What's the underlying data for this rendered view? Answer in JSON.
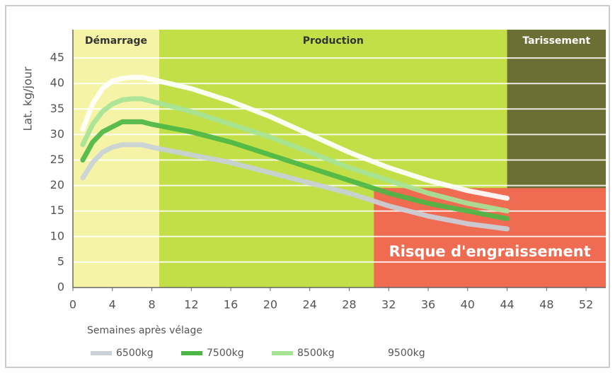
{
  "chart_data": {
    "type": "line",
    "ylabel": "Lat. kg/jour",
    "xlabel": "Semaines après vélage",
    "xlim": [
      0,
      54
    ],
    "ylim": [
      0,
      50
    ],
    "xticks": [
      0,
      4,
      8,
      12,
      16,
      20,
      24,
      28,
      32,
      36,
      40,
      44,
      48,
      52
    ],
    "yticks": [
      0,
      5,
      10,
      15,
      20,
      25,
      30,
      35,
      40,
      45
    ],
    "grid": true,
    "phases": [
      {
        "label": "Démarrage",
        "start": 0,
        "end": 8.75,
        "color": "#f5f4a6"
      },
      {
        "label": "Production",
        "start": 8.75,
        "end": 44,
        "color": "#c3df48"
      },
      {
        "label": "Tarissement",
        "start": 44,
        "end": 54,
        "color": "#6c6f34"
      }
    ],
    "zone": {
      "label": "Risque d'engraissement",
      "xlim": [
        30.5,
        54
      ],
      "ylim": [
        0,
        19.5
      ],
      "color": "#ef6b52"
    },
    "x": [
      1,
      2,
      3,
      4,
      5,
      6,
      7,
      8,
      12,
      16,
      20,
      24,
      28,
      32,
      36,
      40,
      44
    ],
    "series": [
      {
        "name": "6500kg",
        "color": "#c9d0d8",
        "values": [
          21.5,
          24.5,
          26.5,
          27.5,
          28,
          28,
          28,
          27.5,
          26,
          24.5,
          22.5,
          20.5,
          18.5,
          16,
          14,
          12.5,
          11.5
        ]
      },
      {
        "name": "7500kg",
        "color": "#4cb646",
        "values": [
          25,
          28.5,
          30.5,
          31.5,
          32.5,
          32.5,
          32.5,
          32,
          30.5,
          28.5,
          26,
          23.5,
          21,
          18.5,
          16.5,
          15,
          13.5
        ]
      },
      {
        "name": "8500kg",
        "color": "#a6e397",
        "values": [
          28,
          32,
          34.5,
          36,
          36.8,
          37,
          37,
          36.5,
          34.5,
          32,
          29.5,
          26.5,
          23.5,
          21,
          18.5,
          16.5,
          15
        ]
      },
      {
        "name": "9500kg",
        "color": "#ffffff",
        "values": [
          31,
          36,
          39,
          40.5,
          41,
          41.2,
          41.2,
          40.8,
          39,
          36.5,
          33.5,
          30,
          26.5,
          23.5,
          21,
          19,
          17.5
        ]
      }
    ]
  }
}
